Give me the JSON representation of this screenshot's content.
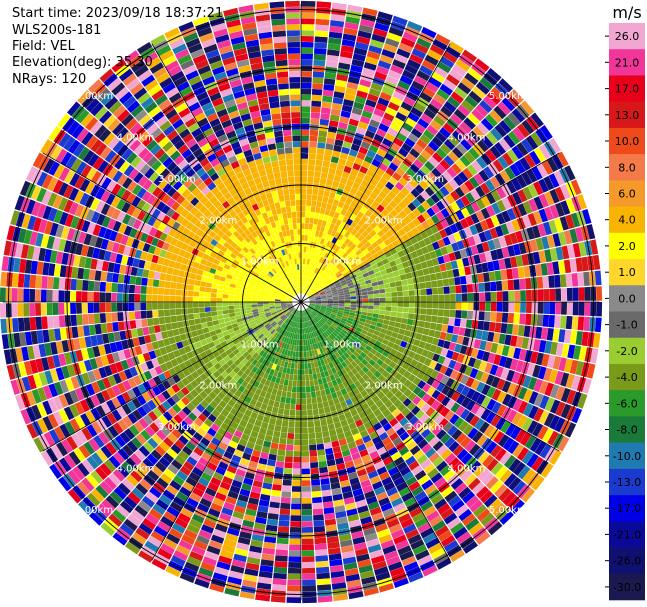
{
  "header": {
    "start_time": "Start time: 2023/09/18 18:37:21",
    "instrument": "WLS200s-181",
    "field": "Field: VEL",
    "elevation": "Elevation(deg): 35.30",
    "nrays": "NRays: 120"
  },
  "chart_data": {
    "type": "heatmap",
    "projection": "polar-ppi",
    "field": "VEL",
    "units": "m/s",
    "n_rays": 120,
    "elevation_deg": 35.3,
    "range_rings_km": [
      1.0,
      2.0,
      3.0,
      4.0,
      5.0
    ],
    "ring_labels": [
      "1.00km",
      "2.00km",
      "3.00km",
      "4.00km",
      "5.00km"
    ],
    "spokes_deg": [
      0,
      30,
      60,
      90,
      120,
      150,
      180,
      210,
      240,
      270,
      300,
      330
    ],
    "clean_data_max_range_km": 2.4,
    "max_range_km": 5.1,
    "colorbar": {
      "title": "m/s",
      "tick_labels": [
        "26.0",
        "21.0",
        "17.0",
        "13.0",
        "10.0",
        "8.0",
        "6.0",
        "4.0",
        "2.0",
        "1.0",
        "0.0",
        "-1.0",
        "-2.0",
        "-4.0",
        "-6.0",
        "-8.0",
        "-10.0",
        "-13.0",
        "-17.0",
        "-21.0",
        "-26.0",
        "-30.0"
      ],
      "bins": [
        {
          "from": 26.0,
          "to": 30.0,
          "color": "#f2a6d2"
        },
        {
          "from": 21.0,
          "to": 26.0,
          "color": "#f23598"
        },
        {
          "from": 17.0,
          "to": 21.0,
          "color": "#e8001a"
        },
        {
          "from": 13.0,
          "to": 17.0,
          "color": "#d81818"
        },
        {
          "from": 10.0,
          "to": 13.0,
          "color": "#ee4a1a"
        },
        {
          "from": 8.0,
          "to": 10.0,
          "color": "#f47a4a"
        },
        {
          "from": 6.0,
          "to": 8.0,
          "color": "#f59a2a"
        },
        {
          "from": 4.0,
          "to": 6.0,
          "color": "#f8b400"
        },
        {
          "from": 2.0,
          "to": 4.0,
          "color": "#ffff00"
        },
        {
          "from": 1.0,
          "to": 2.0,
          "color": "#ffd72a"
        },
        {
          "from": 0.0,
          "to": 1.0,
          "color": "#8a8a8a"
        },
        {
          "from": -1.0,
          "to": 0.0,
          "color": "#6a6a6a"
        },
        {
          "from": -2.0,
          "to": -1.0,
          "color": "#9acd32"
        },
        {
          "from": -4.0,
          "to": -2.0,
          "color": "#7a9a1a"
        },
        {
          "from": -6.0,
          "to": -4.0,
          "color": "#2a9a2a"
        },
        {
          "from": -8.0,
          "to": -6.0,
          "color": "#1a7a3a"
        },
        {
          "from": -10.0,
          "to": -8.0,
          "color": "#1e7ab0"
        },
        {
          "from": -13.0,
          "to": -10.0,
          "color": "#1a3ad0"
        },
        {
          "from": -17.0,
          "to": -13.0,
          "color": "#0000e8"
        },
        {
          "from": -21.0,
          "to": -17.0,
          "color": "#0a0a9a"
        },
        {
          "from": -26.0,
          "to": -21.0,
          "color": "#101070"
        },
        {
          "from": -30.0,
          "to": -26.0,
          "color": "#1a1a50"
        }
      ]
    },
    "sectors": [
      {
        "from_azimuth_deg": 300,
        "to_azimuth_deg": 60,
        "near_velocity": 3.0,
        "far_velocity": 5.0
      },
      {
        "from_azimuth_deg": 60,
        "to_azimuth_deg": 100,
        "near_velocity": 0.5,
        "far_velocity": -3.0
      },
      {
        "from_azimuth_deg": 100,
        "to_azimuth_deg": 220,
        "near_velocity": -5.0,
        "far_velocity": -3.0
      },
      {
        "from_azimuth_deg": 220,
        "to_azimuth_deg": 270,
        "near_velocity": -0.5,
        "far_velocity": -3.0
      },
      {
        "from_azimuth_deg": 270,
        "to_azimuth_deg": 300,
        "near_velocity": 2.5,
        "far_velocity": 5.0
      }
    ]
  }
}
